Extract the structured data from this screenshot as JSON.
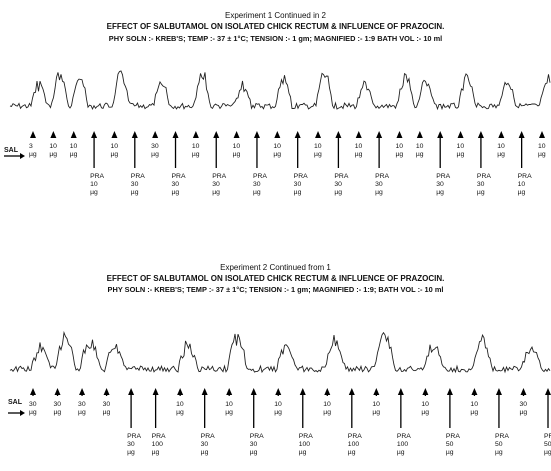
{
  "experiments": [
    {
      "heading": "Experiment 1 Continued in 2",
      "title": "EFFECT OF SALBUTAMOL ON ISOLATED CHICK RECTUM & INFLUENCE OF PRAZOCIN.",
      "conditions": "PHY SOLN :- KREB'S; TEMP :- 37 ± 1°C; TENSION :- 1 gm; MAGNIFIED :- 1:9 BATH VOL :- 10 ml",
      "start_label": "SAL",
      "doses": [
        {
          "drug": "",
          "dose": "3",
          "unit": "µg"
        },
        {
          "drug": "",
          "dose": "10",
          "unit": "µg"
        },
        {
          "drug": "",
          "dose": "10",
          "unit": "µg"
        },
        {
          "drug": "PRA",
          "dose": "10",
          "unit": "µg"
        },
        {
          "drug": "",
          "dose": "10",
          "unit": "µg"
        },
        {
          "drug": "PRA",
          "dose": "30",
          "unit": "µg"
        },
        {
          "drug": "",
          "dose": "30",
          "unit": "µg"
        },
        {
          "drug": "PRA",
          "dose": "30",
          "unit": "µg"
        },
        {
          "drug": "",
          "dose": "10",
          "unit": "µg"
        },
        {
          "drug": "PRA",
          "dose": "30",
          "unit": "µg"
        },
        {
          "drug": "",
          "dose": "10",
          "unit": "µg"
        },
        {
          "drug": "PRA",
          "dose": "30",
          "unit": "µg"
        },
        {
          "drug": "",
          "dose": "10",
          "unit": "µg"
        },
        {
          "drug": "PRA",
          "dose": "30",
          "unit": "µg"
        },
        {
          "drug": "",
          "dose": "10",
          "unit": "µg"
        },
        {
          "drug": "PRA",
          "dose": "30",
          "unit": "µg"
        },
        {
          "drug": "",
          "dose": "10",
          "unit": "µg"
        },
        {
          "drug": "PRA",
          "dose": "30",
          "unit": "µg"
        },
        {
          "drug": "",
          "dose": "10",
          "unit": "µg"
        },
        {
          "drug": "",
          "dose": "10",
          "unit": "µg"
        },
        {
          "drug": "PRA",
          "dose": "30",
          "unit": "µg"
        },
        {
          "drug": "",
          "dose": "10",
          "unit": "µg"
        },
        {
          "drug": "PRA",
          "dose": "30",
          "unit": "µg"
        },
        {
          "drug": "",
          "dose": "10",
          "unit": "µg"
        },
        {
          "drug": "PRA",
          "dose": "10",
          "unit": "µg"
        },
        {
          "drug": "",
          "dose": "10",
          "unit": "µg"
        }
      ]
    },
    {
      "heading": "Experiment 2 Continued from 1",
      "title": "EFFECT OF SALBUTAMOL ON ISOLATED CHICK RECTUM & INFLUENCE OF PRAZOCIN.",
      "conditions": "PHY SOLN :- KREB'S; TEMP :- 37 ± 1°C; TENSION :- 1 gm; MAGNIFIED :- 1:9; BATH VOL :- 10 ml",
      "start_label": "SAL",
      "doses": [
        {
          "drug": "",
          "dose": "30",
          "unit": "µg"
        },
        {
          "drug": "",
          "dose": "30",
          "unit": "µg"
        },
        {
          "drug": "",
          "dose": "30",
          "unit": "µg"
        },
        {
          "drug": "",
          "dose": "30",
          "unit": "µg"
        },
        {
          "drug": "PRA",
          "dose": "30",
          "unit": "µg"
        },
        {
          "drug": "PRA",
          "dose": "100",
          "unit": "µg"
        },
        {
          "drug": "",
          "dose": "10",
          "unit": "µg"
        },
        {
          "drug": "PRA",
          "dose": "30",
          "unit": "µg"
        },
        {
          "drug": "",
          "dose": "10",
          "unit": "µg"
        },
        {
          "drug": "PRA",
          "dose": "30",
          "unit": "µg"
        },
        {
          "drug": "",
          "dose": "10",
          "unit": "µg"
        },
        {
          "drug": "PRA",
          "dose": "100",
          "unit": "µg"
        },
        {
          "drug": "",
          "dose": "10",
          "unit": "µg"
        },
        {
          "drug": "PRA",
          "dose": "100",
          "unit": "µg"
        },
        {
          "drug": "",
          "dose": "10",
          "unit": "µg"
        },
        {
          "drug": "PRA",
          "dose": "100",
          "unit": "µg"
        },
        {
          "drug": "",
          "dose": "10",
          "unit": "µg"
        },
        {
          "drug": "PRA",
          "dose": "50",
          "unit": "µg"
        },
        {
          "drug": "",
          "dose": "10",
          "unit": "µg"
        },
        {
          "drug": "PRA",
          "dose": "50",
          "unit": "µg"
        },
        {
          "drug": "",
          "dose": "30",
          "unit": "µg"
        },
        {
          "drug": "PRA",
          "dose": "50",
          "unit": "µg"
        }
      ]
    }
  ]
}
